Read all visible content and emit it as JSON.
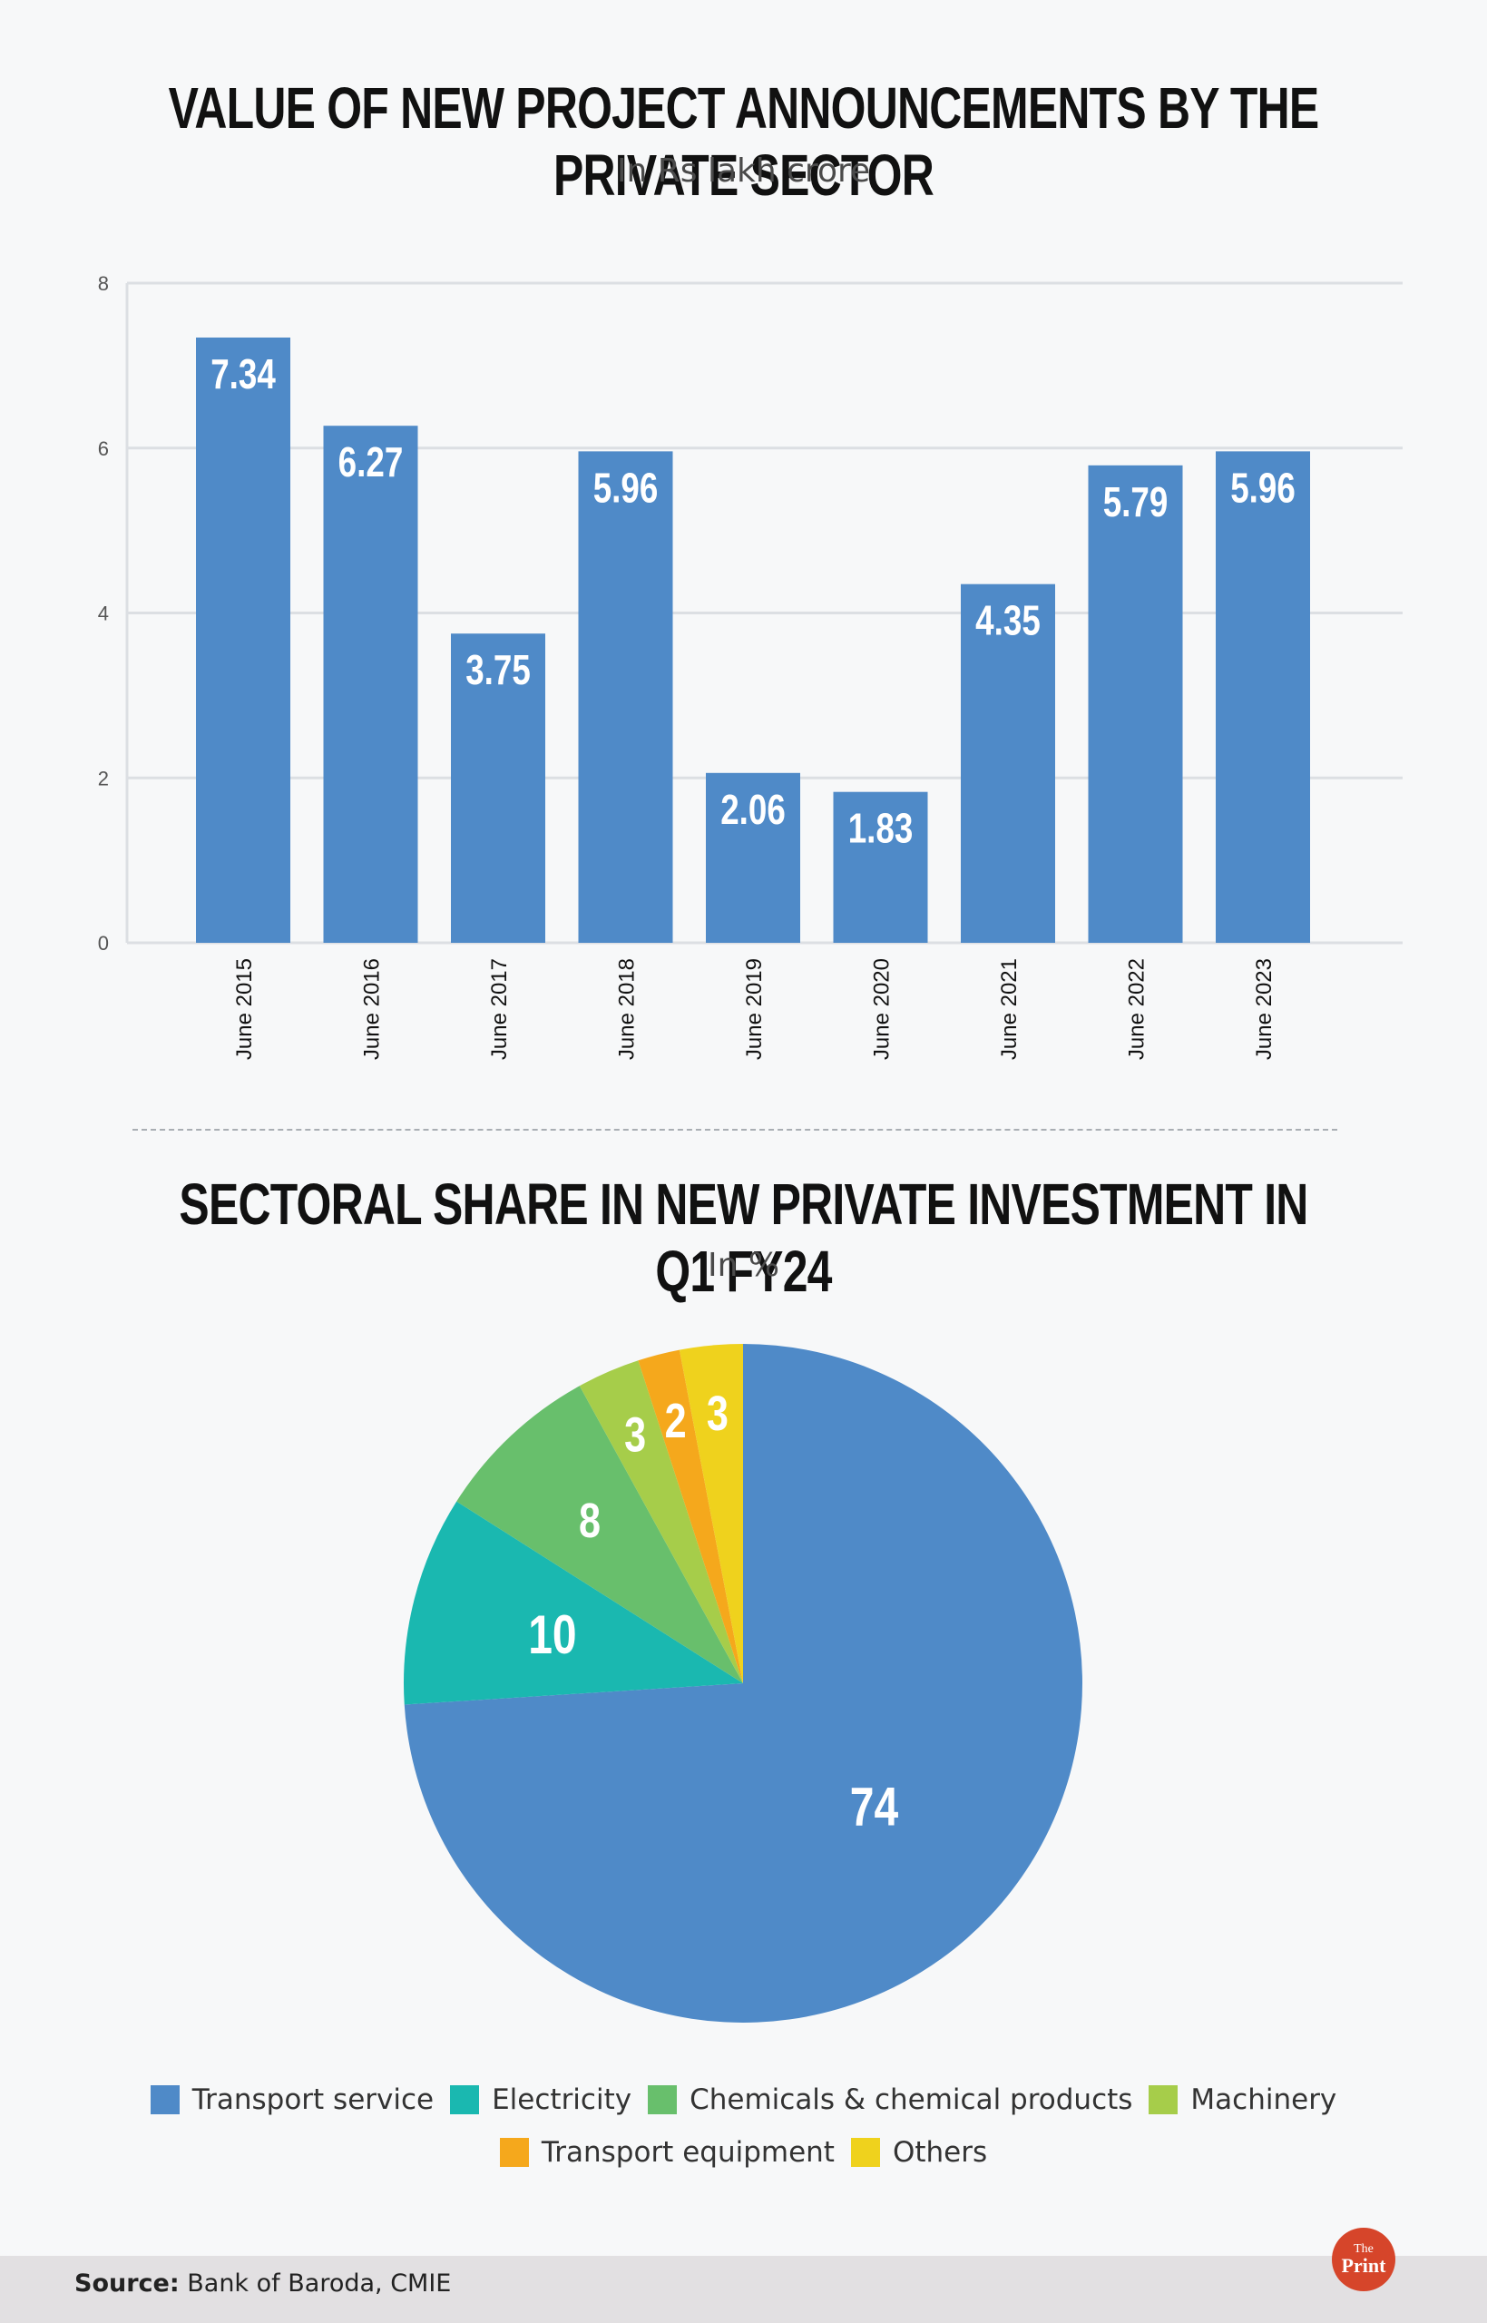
{
  "source_label": "Source:",
  "source_text": "Bank of Baroda, CMIE",
  "logo": {
    "line1": "The",
    "line2": "Print"
  },
  "colors": {
    "bar": "#4f8ac8",
    "grid": "#dcdfe3",
    "axis_text": "#555555"
  },
  "chart_data": [
    {
      "type": "bar",
      "title": "VALUE OF NEW PROJECT ANNOUNCEMENTS BY THE PRIVATE SECTOR",
      "subtitle": "In Rs lakh crore",
      "categories": [
        "June 2015",
        "June 2016",
        "June 2017",
        "June 2018",
        "June 2019",
        "June 2020",
        "June 2021",
        "June 2022",
        "June 2023"
      ],
      "values": [
        7.34,
        6.27,
        3.75,
        5.96,
        2.06,
        1.83,
        4.35,
        5.79,
        5.96
      ],
      "value_labels": [
        "7.34",
        "6.27",
        "3.75",
        "5.96",
        "2.06",
        "1.83",
        "4.35",
        "5.79",
        "5.96"
      ],
      "ylim": [
        0,
        8
      ],
      "yticks": [
        "0",
        "2",
        "4",
        "6",
        "8"
      ],
      "grid": true,
      "xlabel": "",
      "ylabel": ""
    },
    {
      "type": "pie",
      "title": "SECTORAL SHARE IN NEW PRIVATE INVESTMENT IN Q1 FY24",
      "subtitle": "In %",
      "slices": [
        {
          "label": "Transport service",
          "value": 74,
          "value_label": "74",
          "color": "#4f8ac8"
        },
        {
          "label": "Electricity",
          "value": 10,
          "value_label": "10",
          "color": "#1ab8b0"
        },
        {
          "label": "Chemicals & chemical products",
          "value": 8,
          "value_label": "8",
          "color": "#68bf6c"
        },
        {
          "label": "Machinery",
          "value": 3,
          "value_label": "3",
          "color": "#a6cd4a"
        },
        {
          "label": "Transport equipment",
          "value": 2,
          "value_label": "2",
          "color": "#f5a81c"
        },
        {
          "label": "Others",
          "value": 3,
          "value_label": "3",
          "color": "#efd21d"
        }
      ],
      "legend_placement": "bottom"
    }
  ]
}
